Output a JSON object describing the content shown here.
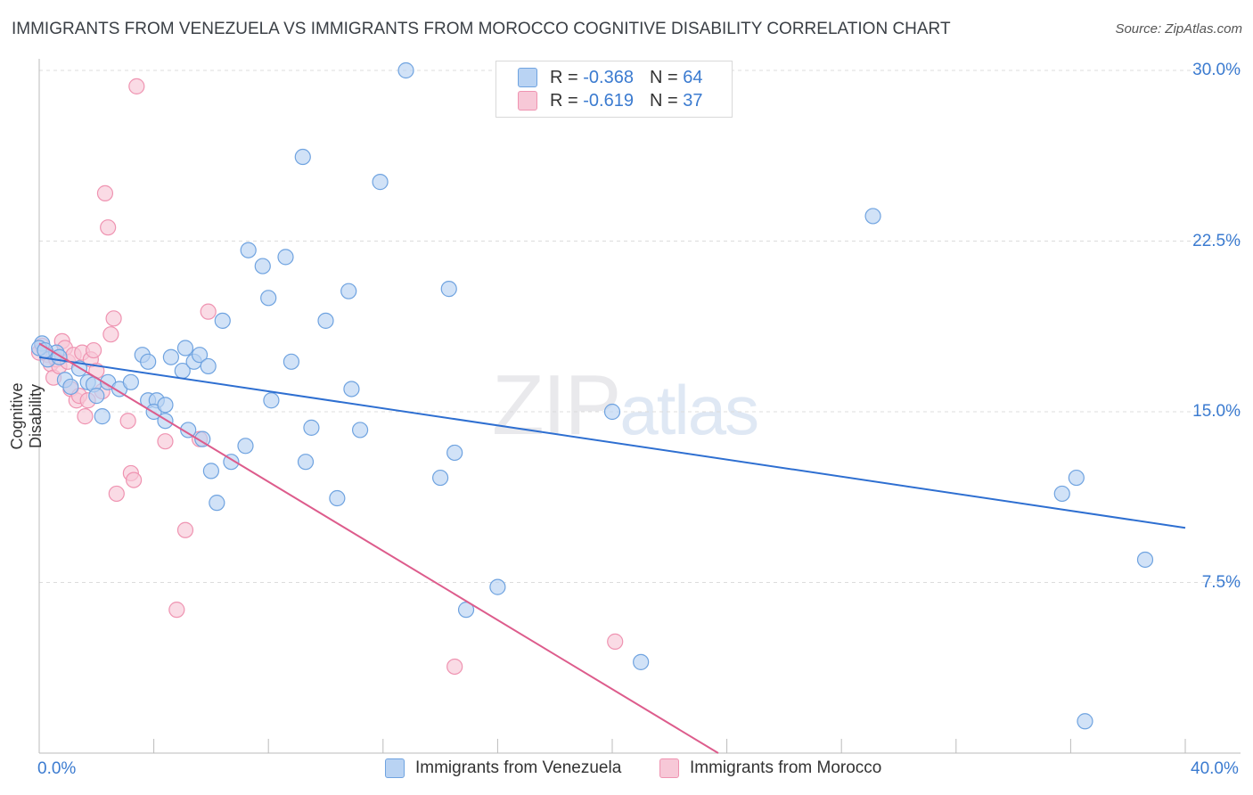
{
  "chart_data": {
    "type": "scatter",
    "title": "IMMIGRANTS FROM VENEZUELA VS IMMIGRANTS FROM MOROCCO COGNITIVE DISABILITY CORRELATION CHART",
    "source": "Source: ZipAtlas.com",
    "ylabel": "Cognitive Disability",
    "xlabel": "",
    "xlim": [
      0,
      40
    ],
    "ylim": [
      0,
      31.5
    ],
    "x_tick_labels": [
      "0.0%",
      "40.0%"
    ],
    "y_ticks": [
      7.5,
      15.0,
      22.5,
      30.0
    ],
    "y_tick_labels": [
      "7.5%",
      "15.0%",
      "22.5%",
      "30.0%"
    ],
    "grid": true,
    "watermark": {
      "part1": "ZIP",
      "part2": "atlas"
    },
    "legend": {
      "rows": [
        {
          "r_label": "R =",
          "r_value": "-0.368",
          "n_label": "N =",
          "n_value": "64"
        },
        {
          "r_label": "R =",
          "r_value": "-0.619",
          "n_label": "N =",
          "n_value": "37"
        }
      ]
    },
    "series": [
      {
        "name": "Immigrants from Venezuela",
        "color": "#6fa3e0",
        "fill": "#b9d3f3",
        "line_color": "#2e6fd1",
        "trend": {
          "x": [
            0.0,
            40.0
          ],
          "y": [
            17.4,
            9.9
          ]
        },
        "points": [
          [
            0.1,
            18.0
          ],
          [
            0.3,
            17.3
          ],
          [
            0.6,
            17.6
          ],
          [
            0.7,
            17.4
          ],
          [
            0.9,
            16.4
          ],
          [
            1.1,
            16.1
          ],
          [
            1.4,
            16.9
          ],
          [
            1.7,
            16.3
          ],
          [
            1.9,
            16.2
          ],
          [
            2.0,
            15.7
          ],
          [
            2.2,
            14.8
          ],
          [
            2.4,
            16.3
          ],
          [
            2.8,
            16.0
          ],
          [
            3.2,
            16.3
          ],
          [
            3.6,
            17.5
          ],
          [
            3.8,
            17.2
          ],
          [
            3.8,
            15.5
          ],
          [
            4.1,
            15.5
          ],
          [
            4.0,
            15.0
          ],
          [
            4.4,
            15.3
          ],
          [
            4.4,
            14.6
          ],
          [
            4.6,
            17.4
          ],
          [
            5.0,
            16.8
          ],
          [
            5.1,
            17.8
          ],
          [
            5.2,
            14.2
          ],
          [
            5.4,
            17.2
          ],
          [
            5.6,
            17.5
          ],
          [
            5.7,
            13.8
          ],
          [
            5.9,
            17.0
          ],
          [
            6.0,
            12.4
          ],
          [
            6.2,
            11.0
          ],
          [
            6.4,
            19.0
          ],
          [
            6.7,
            12.8
          ],
          [
            7.2,
            13.5
          ],
          [
            7.3,
            22.1
          ],
          [
            7.8,
            21.4
          ],
          [
            8.0,
            20.0
          ],
          [
            8.1,
            15.5
          ],
          [
            8.6,
            21.8
          ],
          [
            8.8,
            17.2
          ],
          [
            9.2,
            26.2
          ],
          [
            9.3,
            12.8
          ],
          [
            9.5,
            14.3
          ],
          [
            10.0,
            19.0
          ],
          [
            10.4,
            11.2
          ],
          [
            10.8,
            20.3
          ],
          [
            10.9,
            16.0
          ],
          [
            11.2,
            14.2
          ],
          [
            11.9,
            25.1
          ],
          [
            12.8,
            30.0
          ],
          [
            14.0,
            12.1
          ],
          [
            14.3,
            20.4
          ],
          [
            14.5,
            13.2
          ],
          [
            14.9,
            6.3
          ],
          [
            16.0,
            7.3
          ],
          [
            20.0,
            15.0
          ],
          [
            21.0,
            4.0
          ],
          [
            29.1,
            23.6
          ],
          [
            35.7,
            11.4
          ],
          [
            36.2,
            12.1
          ],
          [
            38.6,
            8.5
          ],
          [
            36.5,
            1.4
          ],
          [
            0.0,
            17.8
          ],
          [
            0.2,
            17.7
          ]
        ]
      },
      {
        "name": "Immigrants from Morocco",
        "color": "#ef93b1",
        "fill": "#f7c8d7",
        "line_color": "#dd5c8c",
        "trend": {
          "x": [
            0.0,
            23.7
          ],
          "y": [
            18.0,
            0.0
          ]
        },
        "points": [
          [
            0.1,
            17.9
          ],
          [
            0.3,
            17.5
          ],
          [
            0.4,
            17.1
          ],
          [
            0.5,
            16.5
          ],
          [
            0.6,
            17.3
          ],
          [
            0.7,
            17.0
          ],
          [
            0.8,
            18.1
          ],
          [
            0.9,
            17.8
          ],
          [
            1.0,
            17.2
          ],
          [
            1.1,
            16.0
          ],
          [
            1.2,
            17.5
          ],
          [
            1.3,
            15.5
          ],
          [
            1.4,
            15.7
          ],
          [
            1.5,
            17.6
          ],
          [
            1.6,
            14.8
          ],
          [
            1.7,
            15.5
          ],
          [
            1.8,
            17.3
          ],
          [
            1.9,
            17.7
          ],
          [
            2.0,
            16.8
          ],
          [
            2.2,
            15.9
          ],
          [
            2.3,
            24.6
          ],
          [
            2.4,
            23.1
          ],
          [
            2.5,
            18.4
          ],
          [
            2.6,
            19.1
          ],
          [
            2.7,
            11.4
          ],
          [
            3.1,
            14.6
          ],
          [
            3.2,
            12.3
          ],
          [
            3.3,
            12.0
          ],
          [
            3.4,
            29.3
          ],
          [
            4.4,
            13.7
          ],
          [
            4.8,
            6.3
          ],
          [
            5.1,
            9.8
          ],
          [
            5.6,
            13.8
          ],
          [
            5.9,
            19.4
          ],
          [
            20.1,
            4.9
          ],
          [
            14.5,
            3.8
          ],
          [
            0.0,
            17.6
          ]
        ]
      }
    ]
  }
}
